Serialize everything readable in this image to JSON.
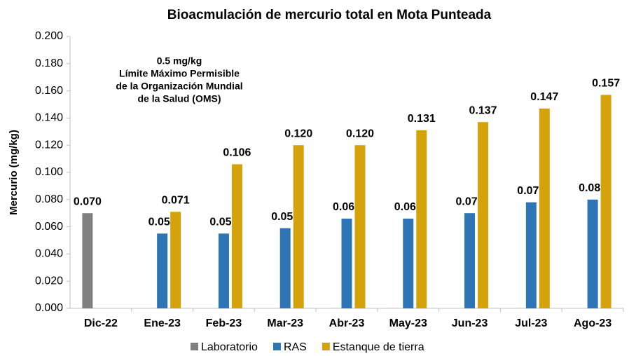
{
  "chart_data": {
    "type": "bar",
    "title": "Bioacmulación de mercurio total en Mota Punteada",
    "ylabel": "Mercurio (mg/kg)",
    "annotation": [
      "0.5 mg/kg",
      "Límite Máximo Permisible",
      "de la Organización Mundial",
      "de la Salud (OMS)"
    ],
    "annotation_color": "#ff0000",
    "categories": [
      "Dic-22",
      "Ene-23",
      "Feb-23",
      "Mar-23",
      "Abr-23",
      "May-23",
      "Jun-23",
      "Jul-23",
      "Ago-23"
    ],
    "series": [
      {
        "name": "Laboratorio",
        "color": "#808080",
        "values": [
          0.07,
          null,
          null,
          null,
          null,
          null,
          null,
          null,
          null
        ],
        "value_labels": [
          "0.070",
          null,
          null,
          null,
          null,
          null,
          null,
          null,
          null
        ]
      },
      {
        "name": "RAS",
        "color": "#2e75b6",
        "values": [
          null,
          0.055,
          0.055,
          0.059,
          0.066,
          0.066,
          0.07,
          0.078,
          0.08
        ],
        "value_labels": [
          null,
          "0.055",
          "0.055",
          "0.059",
          "0.066",
          "0.066",
          "0.070",
          "0.078",
          "0.080"
        ]
      },
      {
        "name": "Estanque de tierra",
        "color": "#d4a20a",
        "values": [
          null,
          0.071,
          0.106,
          0.12,
          0.12,
          0.131,
          0.137,
          0.147,
          0.157
        ],
        "value_labels": [
          null,
          "0.071",
          "0.106",
          "0.120",
          "0.120",
          "0.131",
          "0.137",
          "0.147",
          "0.157"
        ]
      }
    ],
    "ylim": [
      0,
      0.2
    ],
    "yticks": [
      {
        "value": 0,
        "label": "0.000"
      },
      {
        "value": 0.02,
        "label": "0.020"
      },
      {
        "value": 0.04,
        "label": "0.040"
      },
      {
        "value": 0.06,
        "label": "0.060"
      },
      {
        "value": 0.08,
        "label": "0.080"
      },
      {
        "value": 0.1,
        "label": "0.100"
      },
      {
        "value": 0.12,
        "label": "0.120"
      },
      {
        "value": 0.14,
        "label": "0.140"
      },
      {
        "value": 0.16,
        "label": "0.160"
      },
      {
        "value": 0.18,
        "label": "0.180"
      },
      {
        "value": 0.2,
        "label": "0.200"
      }
    ],
    "grid": false,
    "legend": "bottom"
  }
}
